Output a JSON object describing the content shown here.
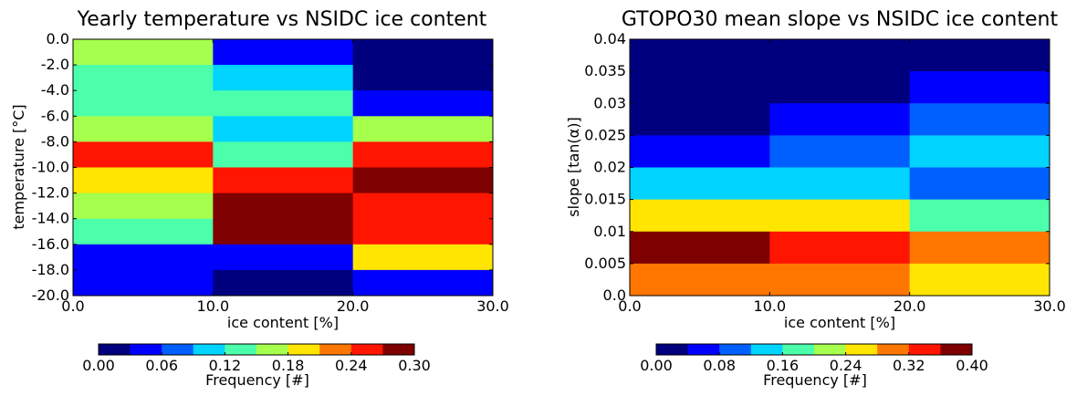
{
  "colormap": [
    "#00007f",
    "#0000ff",
    "#0060ff",
    "#00d4ff",
    "#4cffaa",
    "#a6ff4c",
    "#ffe500",
    "#ff7700",
    "#ff1500",
    "#7f0000"
  ],
  "chart_data": [
    {
      "type": "heatmap",
      "title": "Yearly temperature vs NSIDC ice content",
      "xlabel": "ice content [%]",
      "ylabel": "temperature [$^\\circ$C]",
      "ylabel_display": "temperature [°C]",
      "x_edges": [
        0,
        10,
        20,
        30
      ],
      "y_edges": [
        0,
        -2,
        -4,
        -6,
        -8,
        -10,
        -12,
        -14,
        -16,
        -18,
        -20
      ],
      "xlim": [
        0,
        30
      ],
      "ylim": [
        -20,
        0
      ],
      "xticks": [
        "0.0",
        "10.0",
        "20.0",
        "30.0"
      ],
      "yticks": [
        "0.0",
        "-2.0",
        "-4.0",
        "-6.0",
        "-8.0",
        "-10.0",
        "-12.0",
        "-14.0",
        "-16.0",
        "-18.0",
        "-20.0"
      ],
      "values_rows_top_to_bottom": [
        [
          0.16,
          0.05,
          0.0
        ],
        [
          0.13,
          0.11,
          0.0
        ],
        [
          0.13,
          0.13,
          0.05
        ],
        [
          0.17,
          0.11,
          0.17
        ],
        [
          0.25,
          0.13,
          0.25
        ],
        [
          0.2,
          0.25,
          0.27
        ],
        [
          0.16,
          0.3,
          0.25
        ],
        [
          0.13,
          0.27,
          0.25
        ],
        [
          0.05,
          0.05,
          0.2
        ],
        [
          0.03,
          0.0,
          0.05
        ]
      ],
      "colorbar": {
        "label": "Frequency [#]",
        "ticks": [
          "0.00",
          "0.06",
          "0.12",
          "0.18",
          "0.24",
          "0.30"
        ],
        "min": 0,
        "max": 0.3
      }
    },
    {
      "type": "heatmap",
      "title": "GTOPO30 mean slope vs NSIDC ice content",
      "xlabel": "ice content [%]",
      "ylabel": "slope [tan(α)]",
      "x_edges": [
        0,
        10,
        20,
        30
      ],
      "y_edges": [
        0.04,
        0.035,
        0.03,
        0.025,
        0.02,
        0.015,
        0.01,
        0.005,
        0
      ],
      "xlim": [
        0,
        30
      ],
      "ylim": [
        0,
        0.04
      ],
      "xticks": [
        "0.0",
        "10.0",
        "20.0",
        "30.0"
      ],
      "yticks": [
        "0.04",
        "0.035",
        "0.03",
        "0.025",
        "0.02",
        "0.015",
        "0.01",
        "0.005",
        "0.0"
      ],
      "values_rows_top_to_bottom": [
        [
          0.0,
          0.0,
          0.0
        ],
        [
          0.0,
          0.0,
          0.06
        ],
        [
          0.0,
          0.06,
          0.1
        ],
        [
          0.06,
          0.1,
          0.14
        ],
        [
          0.14,
          0.14,
          0.1
        ],
        [
          0.26,
          0.26,
          0.18
        ],
        [
          0.4,
          0.35,
          0.32
        ],
        [
          0.32,
          0.32,
          0.26
        ]
      ],
      "colorbar": {
        "label": "Frequency [#]",
        "ticks": [
          "0.00",
          "0.08",
          "0.16",
          "0.24",
          "0.32",
          "0.40"
        ],
        "min": 0,
        "max": 0.4
      }
    }
  ]
}
